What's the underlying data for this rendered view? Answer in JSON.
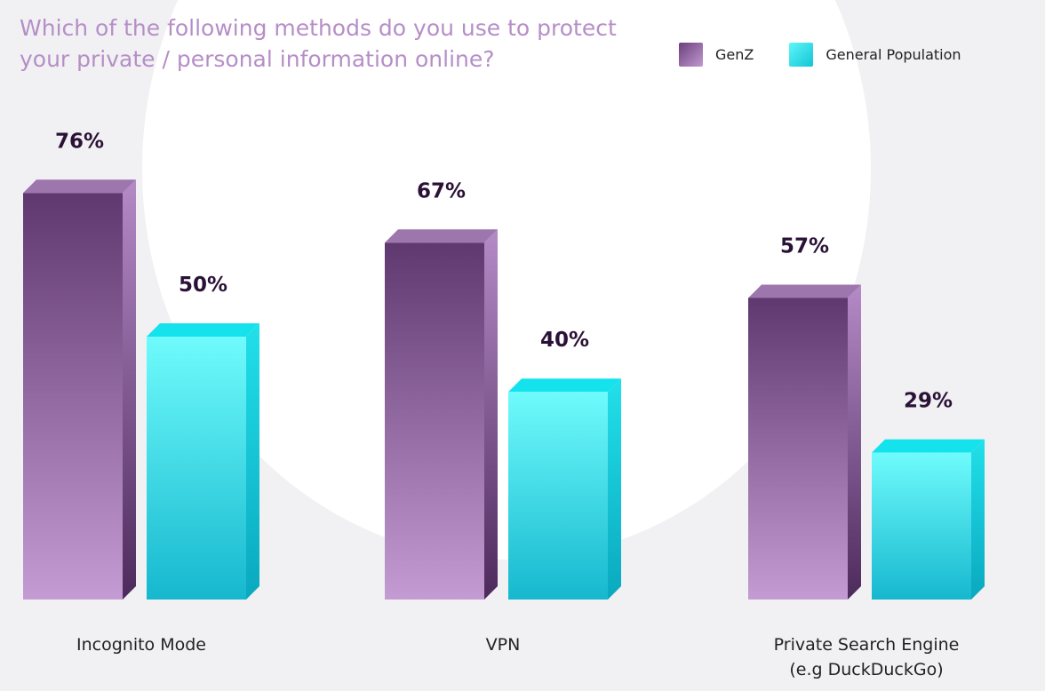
{
  "title": "Which of the following methods do you use to protect your private / personal information online?",
  "legend": [
    {
      "name": "GenZ",
      "color": "#9b6aad"
    },
    {
      "name": "General Population",
      "color": "#22d8e6"
    }
  ],
  "chart_data": {
    "type": "bar",
    "title": "Which of the following methods do you use to protect your private / personal information online?",
    "categories": [
      [
        "Incognito Mode"
      ],
      [
        "VPN"
      ],
      [
        "Private Search Engine",
        "(e.g DuckDuckGo)"
      ]
    ],
    "series": [
      {
        "name": "GenZ",
        "values": [
          76,
          67,
          57
        ],
        "labels": [
          "76%",
          "67%",
          "57%"
        ]
      },
      {
        "name": "General Population",
        "values": [
          50,
          40,
          29
        ],
        "labels": [
          "50%",
          "40%",
          "29%"
        ]
      }
    ],
    "ylim": [
      0,
      100
    ],
    "grid": false,
    "legend_position": "top-right"
  }
}
